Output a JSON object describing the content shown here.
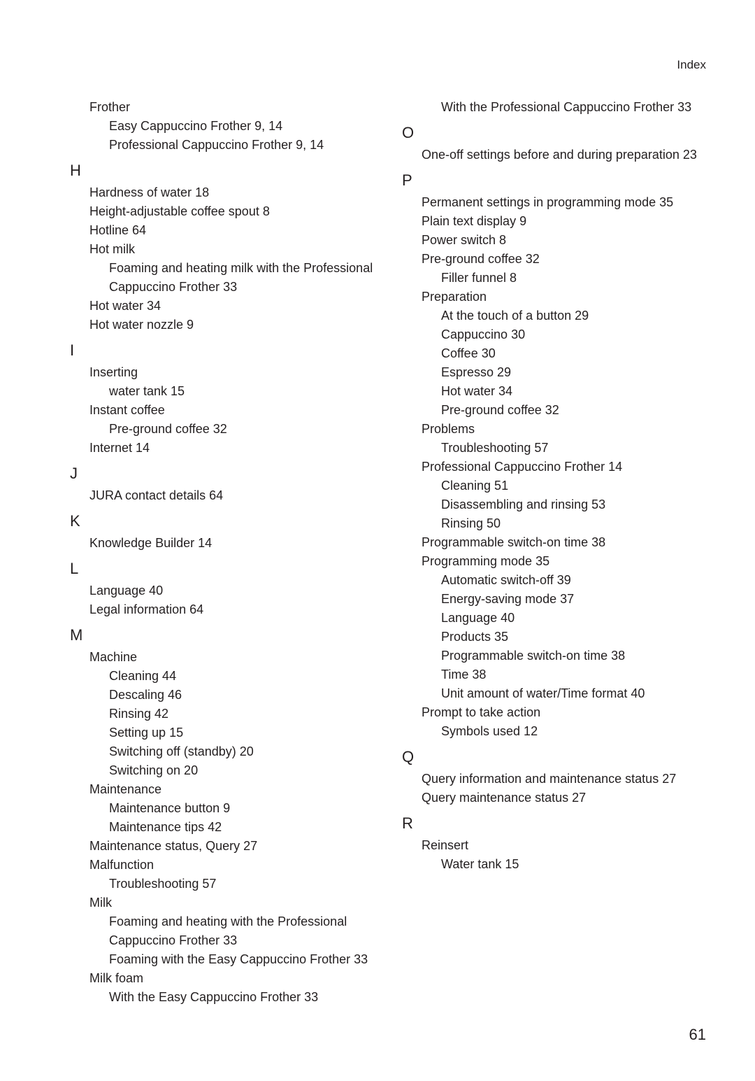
{
  "header": "Index",
  "page_number": "61",
  "colors": {
    "background": "#ffffff",
    "text": "#231f20"
  },
  "typography": {
    "base_size_pt": 18,
    "letter_size_pt": 22
  },
  "sections": [
    {
      "items": [
        {
          "lvl": 1,
          "text": "Frother"
        },
        {
          "lvl": 2,
          "text": "Easy Cappuccino Frother  9, 14"
        },
        {
          "lvl": 2,
          "text": "Professional Cappuccino Frother  9, 14"
        }
      ]
    },
    {
      "letter": "H",
      "items": [
        {
          "lvl": 1,
          "text": "Hardness of water  18"
        },
        {
          "lvl": 1,
          "text": "Height-adjustable coffee spout  8"
        },
        {
          "lvl": 1,
          "text": "Hotline  64"
        },
        {
          "lvl": 1,
          "text": "Hot milk"
        },
        {
          "lvl": 2,
          "text": "Foaming and heating milk with the Professional Cappuccino Frother  33"
        },
        {
          "lvl": 1,
          "text": "Hot water  34"
        },
        {
          "lvl": 1,
          "text": "Hot water nozzle  9"
        }
      ]
    },
    {
      "letter": "I",
      "items": [
        {
          "lvl": 1,
          "text": "Inserting"
        },
        {
          "lvl": 2,
          "text": "water tank  15"
        },
        {
          "lvl": 1,
          "text": "Instant coffee"
        },
        {
          "lvl": 2,
          "text": "Pre-ground coffee  32"
        },
        {
          "lvl": 1,
          "text": "Internet  14"
        }
      ]
    },
    {
      "letter": "J",
      "items": [
        {
          "lvl": 1,
          "text": "JURA contact details  64"
        }
      ]
    },
    {
      "letter": "K",
      "items": [
        {
          "lvl": 1,
          "text": "Knowledge Builder  14"
        }
      ]
    },
    {
      "letter": "L",
      "items": [
        {
          "lvl": 1,
          "text": "Language  40"
        },
        {
          "lvl": 1,
          "text": "Legal information  64"
        }
      ]
    },
    {
      "letter": "M",
      "items": [
        {
          "lvl": 1,
          "text": "Machine"
        },
        {
          "lvl": 2,
          "text": "Cleaning  44"
        },
        {
          "lvl": 2,
          "text": "Descaling  46"
        },
        {
          "lvl": 2,
          "text": "Rinsing  42"
        },
        {
          "lvl": 2,
          "text": "Setting up  15"
        },
        {
          "lvl": 2,
          "text": "Switching off (standby)  20"
        },
        {
          "lvl": 2,
          "text": "Switching on  20"
        },
        {
          "lvl": 1,
          "text": "Maintenance"
        },
        {
          "lvl": 2,
          "text": "Maintenance button  9"
        },
        {
          "lvl": 2,
          "text": "Maintenance tips  42"
        },
        {
          "lvl": 1,
          "text": "Maintenance status, Query  27"
        },
        {
          "lvl": 1,
          "text": "Malfunction"
        },
        {
          "lvl": 2,
          "text": "Troubleshooting  57"
        },
        {
          "lvl": 1,
          "text": "Milk"
        },
        {
          "lvl": 2,
          "text": "Foaming and heating with the Professional Cappuccino Frother  33"
        },
        {
          "lvl": 2,
          "text": "Foaming with the Easy Cappuccino Frother  33"
        },
        {
          "lvl": 1,
          "text": "Milk foam"
        },
        {
          "lvl": 2,
          "text": "With the Easy Cappuccino Frother  33"
        },
        {
          "lvl": 2,
          "text": "With the Professional Cappuccino Frother  33"
        }
      ]
    },
    {
      "letter": "O",
      "items": [
        {
          "lvl": 1,
          "text": "One-off settings before and during preparation  23"
        }
      ]
    },
    {
      "letter": "P",
      "items": [
        {
          "lvl": 1,
          "text": "Permanent settings in programming mode  35"
        },
        {
          "lvl": 1,
          "text": "Plain text display  9"
        },
        {
          "lvl": 1,
          "text": "Power switch  8"
        },
        {
          "lvl": 1,
          "text": "Pre-ground coffee  32"
        },
        {
          "lvl": 2,
          "text": "Filler funnel  8"
        },
        {
          "lvl": 1,
          "text": "Preparation"
        },
        {
          "lvl": 2,
          "text": "At the touch of a button  29"
        },
        {
          "lvl": 2,
          "text": "Cappuccino  30"
        },
        {
          "lvl": 2,
          "text": "Coffee  30"
        },
        {
          "lvl": 2,
          "text": "Espresso  29"
        },
        {
          "lvl": 2,
          "text": "Hot water  34"
        },
        {
          "lvl": 2,
          "text": "Pre-ground coffee  32"
        },
        {
          "lvl": 1,
          "text": "Problems"
        },
        {
          "lvl": 2,
          "text": "Troubleshooting  57"
        },
        {
          "lvl": 1,
          "text": "Professional Cappuccino Frother  14"
        },
        {
          "lvl": 2,
          "text": "Cleaning  51"
        },
        {
          "lvl": 2,
          "text": "Disassembling and rinsing  53"
        },
        {
          "lvl": 2,
          "text": "Rinsing  50"
        },
        {
          "lvl": 1,
          "text": "Programmable switch-on time  38"
        },
        {
          "lvl": 1,
          "text": "Programming mode  35"
        },
        {
          "lvl": 2,
          "text": "Automatic switch-off  39"
        },
        {
          "lvl": 2,
          "text": "Energy-saving mode  37"
        },
        {
          "lvl": 2,
          "text": "Language  40"
        },
        {
          "lvl": 2,
          "text": "Products  35"
        },
        {
          "lvl": 2,
          "text": "Programmable switch-on time  38"
        },
        {
          "lvl": 2,
          "text": "Time  38"
        },
        {
          "lvl": 2,
          "text": "Unit amount of water/Time format  40"
        },
        {
          "lvl": 1,
          "text": "Prompt to take action"
        },
        {
          "lvl": 2,
          "text": "Symbols used  12"
        }
      ]
    },
    {
      "letter": "Q",
      "items": [
        {
          "lvl": 1,
          "text": "Query information and maintenance status  27"
        },
        {
          "lvl": 1,
          "text": "Query maintenance status  27"
        }
      ]
    },
    {
      "letter": "R",
      "items": [
        {
          "lvl": 1,
          "text": "Reinsert"
        },
        {
          "lvl": 2,
          "text": "Water tank  15"
        }
      ]
    }
  ]
}
